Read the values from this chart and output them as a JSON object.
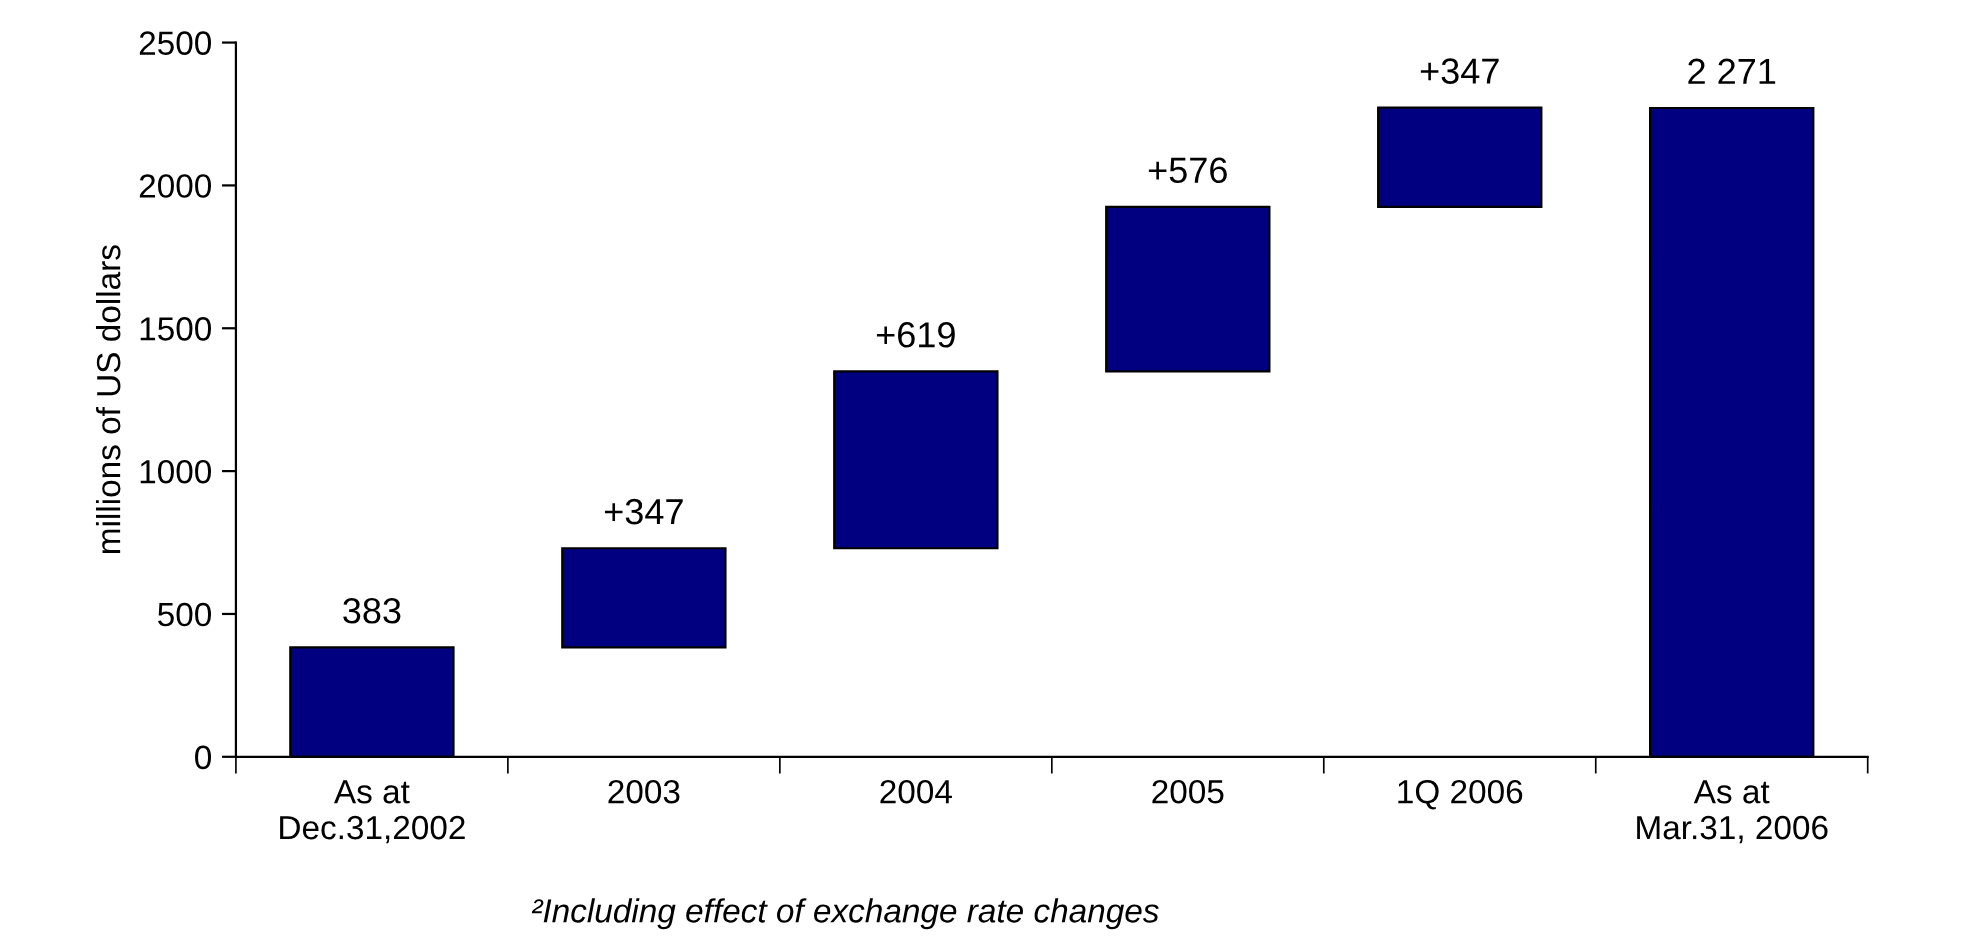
{
  "chart_data": {
    "type": "bar",
    "ylabel": "millions of US dollars",
    "categories": [
      "As at\nDec.31,2002",
      "2003",
      "2004",
      "2005",
      "1Q 2006",
      "As at\nMar.31, 2006"
    ],
    "values": [
      383,
      347,
      619,
      576,
      347,
      2271
    ],
    "base": [
      0,
      383,
      730,
      1349,
      1925,
      0
    ],
    "value_labels": [
      "383",
      "+347",
      "+619",
      "+576",
      "+347",
      "2 271"
    ],
    "color": "#000080",
    "ylim": [
      0,
      2500
    ],
    "yticks": [
      0,
      500,
      1000,
      1500,
      2000,
      2500
    ],
    "grid": false,
    "legend": false,
    "annotations": [
      "²Including effect of exchange rate changes"
    ]
  }
}
